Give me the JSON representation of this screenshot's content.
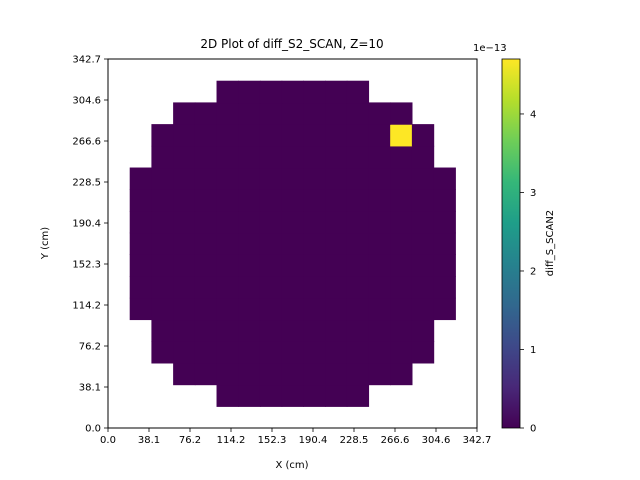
{
  "chart_data": {
    "type": "heatmap",
    "title": "2D Plot of diff_S2_SCAN, Z=10",
    "xlabel": "X (cm)",
    "ylabel": "Y (cm)",
    "xlim": [
      0.0,
      342.7
    ],
    "ylim": [
      0.0,
      342.7
    ],
    "x_ticks": [
      "0.0",
      "38.1",
      "76.2",
      "114.2",
      "152.3",
      "190.4",
      "228.5",
      "266.6",
      "304.6",
      "342.7"
    ],
    "y_ticks": [
      "0.0",
      "38.1",
      "76.2",
      "114.2",
      "152.3",
      "190.4",
      "228.5",
      "266.6",
      "304.6",
      "342.7"
    ],
    "grid_cells": 17,
    "colorbar": {
      "label": "diff_S_SCAN2",
      "ticks": [
        "0",
        "1",
        "2",
        "3",
        "4"
      ],
      "exponent": "1e−13",
      "vmin": 0,
      "vmax": 4.7,
      "colormap": [
        "#440154",
        "#482878",
        "#3e4989",
        "#31688e",
        "#26828e",
        "#1f9e89",
        "#35b779",
        "#6ece58",
        "#b5de2b",
        "#fde725"
      ]
    },
    "row_ranges": [
      {
        "row": 1,
        "from": 5,
        "to": 11
      },
      {
        "row": 2,
        "from": 3,
        "to": 13
      },
      {
        "row": 3,
        "from": 2,
        "to": 14
      },
      {
        "row": 4,
        "from": 2,
        "to": 14
      },
      {
        "row": 5,
        "from": 1,
        "to": 15
      },
      {
        "row": 6,
        "from": 1,
        "to": 15
      },
      {
        "row": 7,
        "from": 1,
        "to": 15
      },
      {
        "row": 8,
        "from": 1,
        "to": 15
      },
      {
        "row": 9,
        "from": 1,
        "to": 15
      },
      {
        "row": 10,
        "from": 1,
        "to": 15
      },
      {
        "row": 11,
        "from": 1,
        "to": 15
      },
      {
        "row": 12,
        "from": 2,
        "to": 14
      },
      {
        "row": 13,
        "from": 2,
        "to": 14
      },
      {
        "row": 14,
        "from": 3,
        "to": 13
      },
      {
        "row": 15,
        "from": 5,
        "to": 11
      }
    ],
    "nonzero_cells": [
      {
        "row": 13,
        "col": 13,
        "value": 4.7
      }
    ]
  }
}
